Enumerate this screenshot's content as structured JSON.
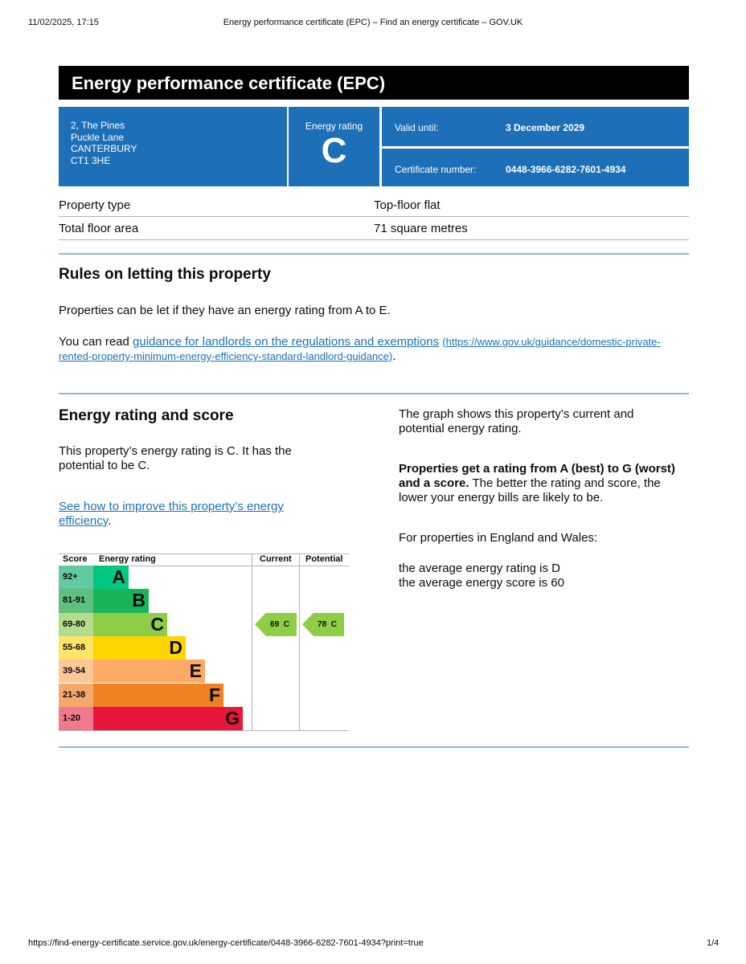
{
  "print_header": {
    "datetime": "11/02/2025, 17:15",
    "title": "Energy performance certificate (EPC) – Find an energy certificate – GOV.UK"
  },
  "print_footer": {
    "url": "https://find-energy-certificate.service.gov.uk/energy-certificate/0448-3966-6282-7601-4934?print=true",
    "page": "1/4"
  },
  "certificate": {
    "title": "Energy performance certificate (EPC)",
    "address": [
      "2, The Pines",
      "Puckle Lane",
      "CANTERBURY",
      "CT1 3HE"
    ],
    "rating_label": "Energy rating",
    "rating": "C",
    "valid_label": "Valid until:",
    "valid_value": "3 December 2029",
    "cert_label": "Certificate number:",
    "cert_value": "0448-3966-6282-7601-4934"
  },
  "summary": [
    {
      "label": "Property type",
      "value": "Top-floor flat"
    },
    {
      "label": "Total floor area",
      "value": "71 square metres"
    }
  ],
  "letting": {
    "heading": "Rules on letting this property",
    "p1": "Properties can be let if they have an energy rating from A to E.",
    "p2_prefix": "You can read ",
    "link": "guidance for landlords on the regulations and exemptions",
    "link_url": "(https://www.gov.uk/guidance/domestic-private-rented-property-minimum-energy-efficiency-standard-landlord-guidance)",
    "p2_suffix": "."
  },
  "rating_section": {
    "heading": "Energy rating and score",
    "p1": "This property’s energy rating is C. It has the potential to be C.",
    "link": "See how to improve this property’s energy efficiency",
    "link_suffix": ".",
    "right_p1": "The graph shows this property’s current and potential energy rating.",
    "right_bold": "Properties get a rating from A (best) to G (worst) and a score.",
    "right_p2": " The better the rating and score, the lower your energy bills are likely to be.",
    "right_p3": "For properties in England and Wales:",
    "avg_rating": "the average energy rating is D",
    "avg_score": "the average energy score is 60"
  },
  "chart_data": {
    "type": "table",
    "headers": [
      "Score",
      "Energy rating",
      "Current",
      "Potential"
    ],
    "bands": [
      {
        "score": "92+",
        "letter": "A",
        "color": "#00c781",
        "tint": "#62c9a2"
      },
      {
        "score": "81-91",
        "letter": "B",
        "color": "#19b459",
        "tint": "#5ebf7e"
      },
      {
        "score": "69-80",
        "letter": "C",
        "color": "#8dce46",
        "tint": "#b4dc8c"
      },
      {
        "score": "55-68",
        "letter": "D",
        "color": "#ffd500",
        "tint": "#ffe46a"
      },
      {
        "score": "39-54",
        "letter": "E",
        "color": "#fcaa65",
        "tint": "#fdc79a"
      },
      {
        "score": "21-38",
        "letter": "F",
        "color": "#ef8023",
        "tint": "#f4a96a"
      },
      {
        "score": "1-20",
        "letter": "G",
        "color": "#e9153b",
        "tint": "#f07a8c"
      }
    ],
    "current": {
      "score": 69,
      "letter": "C",
      "label": "69  C"
    },
    "potential": {
      "score": 78,
      "letter": "C",
      "label": "78  C"
    }
  }
}
